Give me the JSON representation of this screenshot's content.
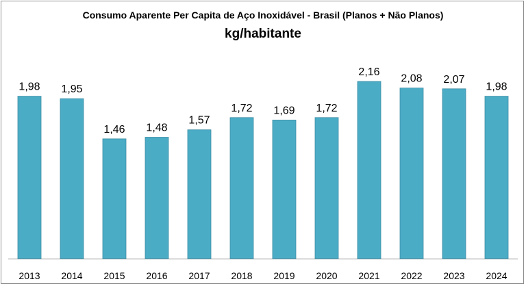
{
  "chart_data": {
    "type": "bar",
    "title": "Consumo Aparente Per Capita de Aço Inoxidável - Brasil  (Planos + Não Planos)",
    "subtitle": "kg/habitante",
    "categories": [
      "2013",
      "2014",
      "2015",
      "2016",
      "2017",
      "2018",
      "2019",
      "2020",
      "2021",
      "2022",
      "2023",
      "2024"
    ],
    "values": [
      1.98,
      1.95,
      1.46,
      1.48,
      1.57,
      1.72,
      1.69,
      1.72,
      2.16,
      2.08,
      2.07,
      1.98
    ],
    "value_labels": [
      "1,98",
      "1,95",
      "1,46",
      "1,48",
      "1,57",
      "1,72",
      "1,69",
      "1,72",
      "2,16",
      "2,08",
      "2,07",
      "1,98"
    ],
    "xlabel": "",
    "ylabel": "",
    "ylim": [
      0,
      2.4
    ],
    "grid": false,
    "bar_color": "#4bacc6",
    "bar_edge_color": "#3c8da3"
  }
}
